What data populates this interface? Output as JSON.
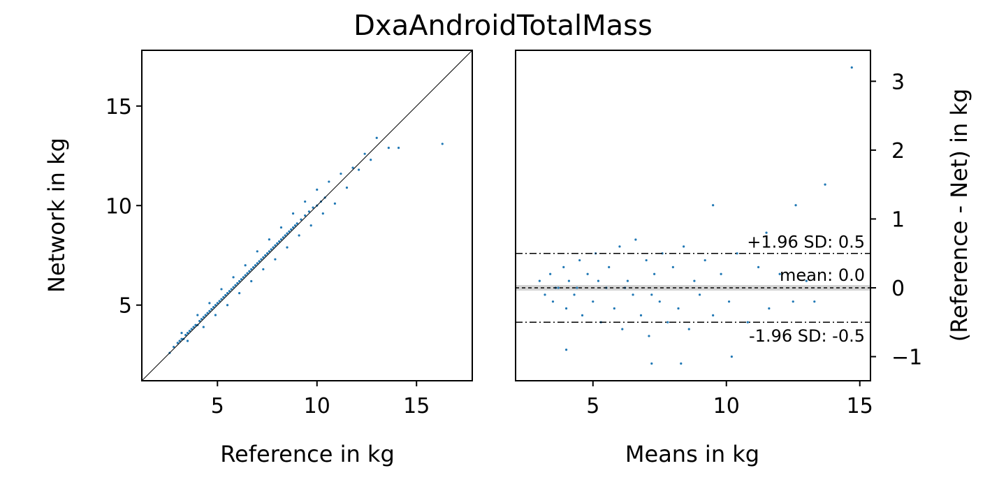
{
  "title": "DxaAndroidTotalMass",
  "chart_data": [
    {
      "type": "scatter",
      "name": "network-vs-reference",
      "xlabel": "Reference in kg",
      "ylabel": "Network in kg",
      "xlim": [
        1.2,
        17.8
      ],
      "ylim": [
        1.2,
        17.8
      ],
      "xticks": [
        5,
        10,
        15
      ],
      "yticks": [
        5,
        10,
        15
      ],
      "identity_line": true,
      "grid": false,
      "color": "#1f77b4",
      "points": [
        [
          2.6,
          2.6
        ],
        [
          2.8,
          2.9
        ],
        [
          3.0,
          3.1
        ],
        [
          3.1,
          3.2
        ],
        [
          3.2,
          3.3
        ],
        [
          3.3,
          3.3
        ],
        [
          3.4,
          3.5
        ],
        [
          3.5,
          3.6
        ],
        [
          3.6,
          3.7
        ],
        [
          3.7,
          3.8
        ],
        [
          3.8,
          3.9
        ],
        [
          3.9,
          4.0
        ],
        [
          4.0,
          4.0
        ],
        [
          4.1,
          4.2
        ],
        [
          4.2,
          4.3
        ],
        [
          4.3,
          4.4
        ],
        [
          4.4,
          4.5
        ],
        [
          4.5,
          4.6
        ],
        [
          4.6,
          4.7
        ],
        [
          4.7,
          4.8
        ],
        [
          4.8,
          4.9
        ],
        [
          4.9,
          5.0
        ],
        [
          5.0,
          5.1
        ],
        [
          5.1,
          5.2
        ],
        [
          5.2,
          5.3
        ],
        [
          5.3,
          5.4
        ],
        [
          5.4,
          5.5
        ],
        [
          5.5,
          5.6
        ],
        [
          5.6,
          5.7
        ],
        [
          5.7,
          5.8
        ],
        [
          5.8,
          5.9
        ],
        [
          5.9,
          6.0
        ],
        [
          6.0,
          6.1
        ],
        [
          6.1,
          6.2
        ],
        [
          6.2,
          6.3
        ],
        [
          6.3,
          6.4
        ],
        [
          6.4,
          6.5
        ],
        [
          6.5,
          6.6
        ],
        [
          6.6,
          6.7
        ],
        [
          6.7,
          6.8
        ],
        [
          6.8,
          6.9
        ],
        [
          6.9,
          7.0
        ],
        [
          7.0,
          7.1
        ],
        [
          7.1,
          7.2
        ],
        [
          7.2,
          7.3
        ],
        [
          7.3,
          7.4
        ],
        [
          7.4,
          7.5
        ],
        [
          7.5,
          7.6
        ],
        [
          7.6,
          7.7
        ],
        [
          7.7,
          7.8
        ],
        [
          7.8,
          7.9
        ],
        [
          7.9,
          8.0
        ],
        [
          8.0,
          8.1
        ],
        [
          8.1,
          8.2
        ],
        [
          8.2,
          8.3
        ],
        [
          8.3,
          8.4
        ],
        [
          8.4,
          8.5
        ],
        [
          8.5,
          8.6
        ],
        [
          8.6,
          8.7
        ],
        [
          8.7,
          8.8
        ],
        [
          8.8,
          8.9
        ],
        [
          8.9,
          9.0
        ],
        [
          9.0,
          9.1
        ],
        [
          9.2,
          9.3
        ],
        [
          9.4,
          9.5
        ],
        [
          9.6,
          9.7
        ],
        [
          9.8,
          9.9
        ],
        [
          10.0,
          10.0
        ],
        [
          10.2,
          10.2
        ],
        [
          10.4,
          10.4
        ],
        [
          3.2,
          3.6
        ],
        [
          3.5,
          3.2
        ],
        [
          4.0,
          4.5
        ],
        [
          4.3,
          3.9
        ],
        [
          4.6,
          5.1
        ],
        [
          4.9,
          4.5
        ],
        [
          5.2,
          5.8
        ],
        [
          5.5,
          5.0
        ],
        [
          5.8,
          6.4
        ],
        [
          6.1,
          5.6
        ],
        [
          6.4,
          7.0
        ],
        [
          6.7,
          6.2
        ],
        [
          7.0,
          7.7
        ],
        [
          7.3,
          6.8
        ],
        [
          7.6,
          8.3
        ],
        [
          7.9,
          7.3
        ],
        [
          8.2,
          8.9
        ],
        [
          8.5,
          7.9
        ],
        [
          8.8,
          9.6
        ],
        [
          9.1,
          8.5
        ],
        [
          9.4,
          10.2
        ],
        [
          9.7,
          9.0
        ],
        [
          10.0,
          10.8
        ],
        [
          10.3,
          9.6
        ],
        [
          10.6,
          11.2
        ],
        [
          10.9,
          10.1
        ],
        [
          11.2,
          11.6
        ],
        [
          11.5,
          10.9
        ],
        [
          11.8,
          11.9
        ],
        [
          12.1,
          11.8
        ],
        [
          12.4,
          12.6
        ],
        [
          12.7,
          12.3
        ],
        [
          13.0,
          13.4
        ],
        [
          13.6,
          12.9
        ],
        [
          14.1,
          12.9
        ],
        [
          16.3,
          13.1
        ]
      ]
    },
    {
      "type": "scatter",
      "name": "bland-altman",
      "xlabel": "Means in kg",
      "ylabel": "(Reference - Net) in kg",
      "xlim": [
        2.1,
        15.4
      ],
      "ylim": [
        -1.35,
        3.45
      ],
      "xticks": [
        5,
        10,
        15
      ],
      "yticks": [
        -1,
        0,
        1,
        2,
        3
      ],
      "ytick_labels": [
        "−1",
        "0",
        "1",
        "2",
        "3"
      ],
      "y_axis_side": "right",
      "grid": false,
      "color": "#1f77b4",
      "mean_line": 0.0,
      "upper_limit": 0.5,
      "lower_limit": -0.5,
      "annotations": {
        "upper": "+1.96 SD: 0.5",
        "mean": "mean: 0.0",
        "lower": "-1.96 SD: -0.5"
      },
      "points": [
        [
          3.0,
          0.1
        ],
        [
          3.2,
          -0.1
        ],
        [
          3.4,
          0.2
        ],
        [
          3.5,
          -0.2
        ],
        [
          3.7,
          0.0
        ],
        [
          3.9,
          0.3
        ],
        [
          4.0,
          -0.3
        ],
        [
          4.1,
          0.1
        ],
        [
          4.3,
          -0.1
        ],
        [
          4.5,
          0.4
        ],
        [
          4.6,
          -0.4
        ],
        [
          4.8,
          0.2
        ],
        [
          5.0,
          -0.2
        ],
        [
          5.1,
          0.5
        ],
        [
          5.3,
          -0.5
        ],
        [
          5.5,
          0.0
        ],
        [
          5.6,
          0.3
        ],
        [
          5.8,
          -0.3
        ],
        [
          6.0,
          0.6
        ],
        [
          6.1,
          -0.6
        ],
        [
          6.3,
          0.1
        ],
        [
          6.5,
          -0.1
        ],
        [
          6.6,
          0.7
        ],
        [
          6.8,
          -0.4
        ],
        [
          7.0,
          0.4
        ],
        [
          7.1,
          -0.7
        ],
        [
          7.3,
          0.2
        ],
        [
          7.5,
          -0.2
        ],
        [
          7.6,
          0.5
        ],
        [
          7.8,
          -0.5
        ],
        [
          8.0,
          0.3
        ],
        [
          8.2,
          -0.3
        ],
        [
          8.4,
          0.6
        ],
        [
          8.6,
          -0.6
        ],
        [
          8.8,
          0.1
        ],
        [
          9.0,
          -0.1
        ],
        [
          9.2,
          0.4
        ],
        [
          9.5,
          -0.4
        ],
        [
          9.8,
          0.2
        ],
        [
          10.1,
          -0.2
        ],
        [
          10.4,
          0.5
        ],
        [
          10.8,
          -0.5
        ],
        [
          11.2,
          0.3
        ],
        [
          11.6,
          -0.3
        ],
        [
          12.0,
          0.2
        ],
        [
          12.5,
          -0.2
        ],
        [
          13.0,
          0.1
        ],
        [
          13.3,
          -0.2
        ],
        [
          3.6,
          0.0
        ],
        [
          4.4,
          0.0
        ],
        [
          5.2,
          0.1
        ],
        [
          6.2,
          0.0
        ],
        [
          7.2,
          -0.1
        ],
        [
          4.0,
          -0.9
        ],
        [
          7.2,
          -1.1
        ],
        [
          8.3,
          -1.1
        ],
        [
          10.2,
          -1.0
        ],
        [
          11.5,
          0.8
        ],
        [
          12.6,
          1.2
        ],
        [
          13.7,
          1.5
        ],
        [
          9.5,
          1.2
        ],
        [
          14.7,
          3.2
        ]
      ]
    }
  ]
}
